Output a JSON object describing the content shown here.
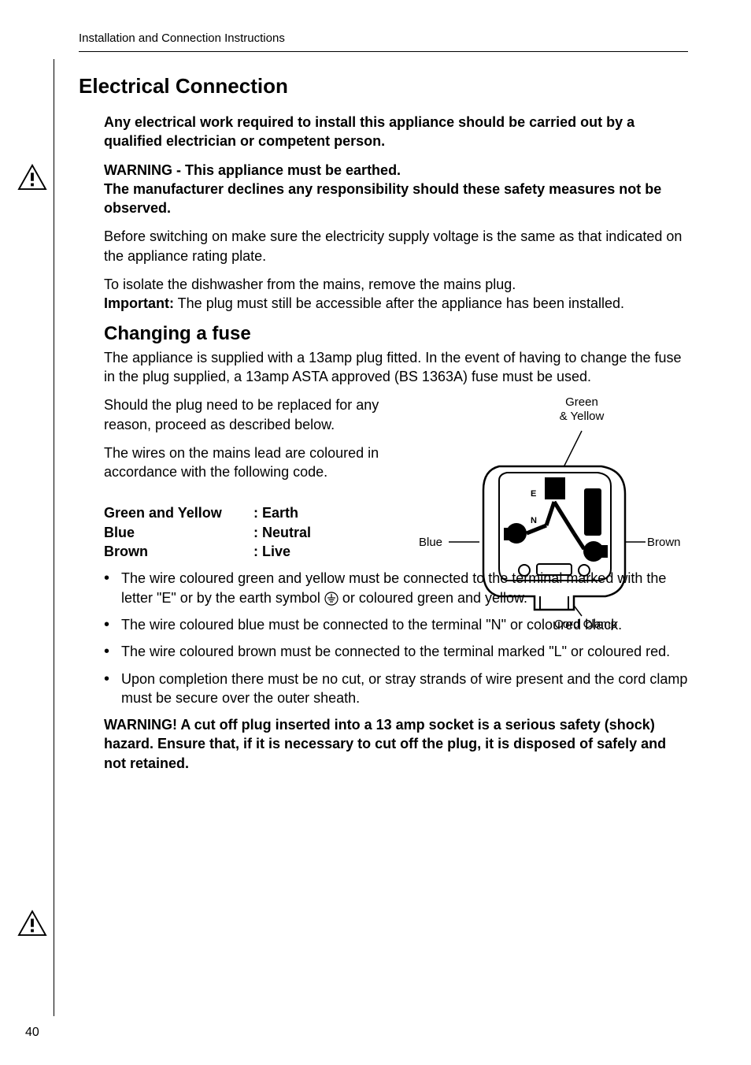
{
  "header": "Installation and Connection Instructions",
  "page_number": "40",
  "title": "Electrical Connection",
  "intro_bold": "Any electrical work required to install this appliance should be carried out by a qualified electrician or competent person.",
  "warning1_line1": "WARNING - This appliance must be earthed.",
  "warning1_line2": "The manufacturer declines any responsibility should these safety measures not be observed.",
  "para1": "Before switching on make sure the electricity supply voltage is the same as that indicated on the appliance rating plate.",
  "para2a": "To isolate the dishwasher from the mains, remove the mains plug. ",
  "para2b_label": "Important:",
  "para2b_text": " The plug must still be accessible after the appliance has been installed.",
  "subheading": "Changing a fuse",
  "para3": "The appliance is supplied with a 13amp plug fitted. In the event of having to change the fuse in the plug supplied, a 13amp ASTA approved (BS 1363A) fuse must be used.",
  "para4": "Should the plug need to be replaced for any reason, proceed as described below.",
  "para5": "The wires on the mains lead are coloured in accordance with the following code.",
  "wires": {
    "row1_c1": "Green and Yellow",
    "row1_c2": ": Earth",
    "row2_c1": "Blue",
    "row2_c2": ": Neutral",
    "row3_c1": "Brown",
    "row3_c2": ": Live"
  },
  "diagram": {
    "green_yellow": "Green\n& Yellow",
    "blue": "Blue",
    "brown": "Brown",
    "cord_clamp": "Cord Clamp"
  },
  "bullet1a": "The wire coloured green and yellow must be connected to the terminal marked with the letter \"E\" or by the earth symbol ",
  "bullet1b": " or coloured green and yellow.",
  "bullet2": "The wire coloured blue must be connected to the terminal \"N\" or coloured black.",
  "bullet3": "The wire coloured brown must be connected to the terminal marked \"L\" or coloured red.",
  "bullet4": "Upon completion there must be no cut, or stray strands of wire present and the cord clamp must be secure over the outer sheath.",
  "warning2": "WARNING! A cut off plug inserted into a 13 amp socket is a serious safety (shock) hazard. Ensure that, if it is necessary to cut off the plug, it is disposed of safely and not retained."
}
